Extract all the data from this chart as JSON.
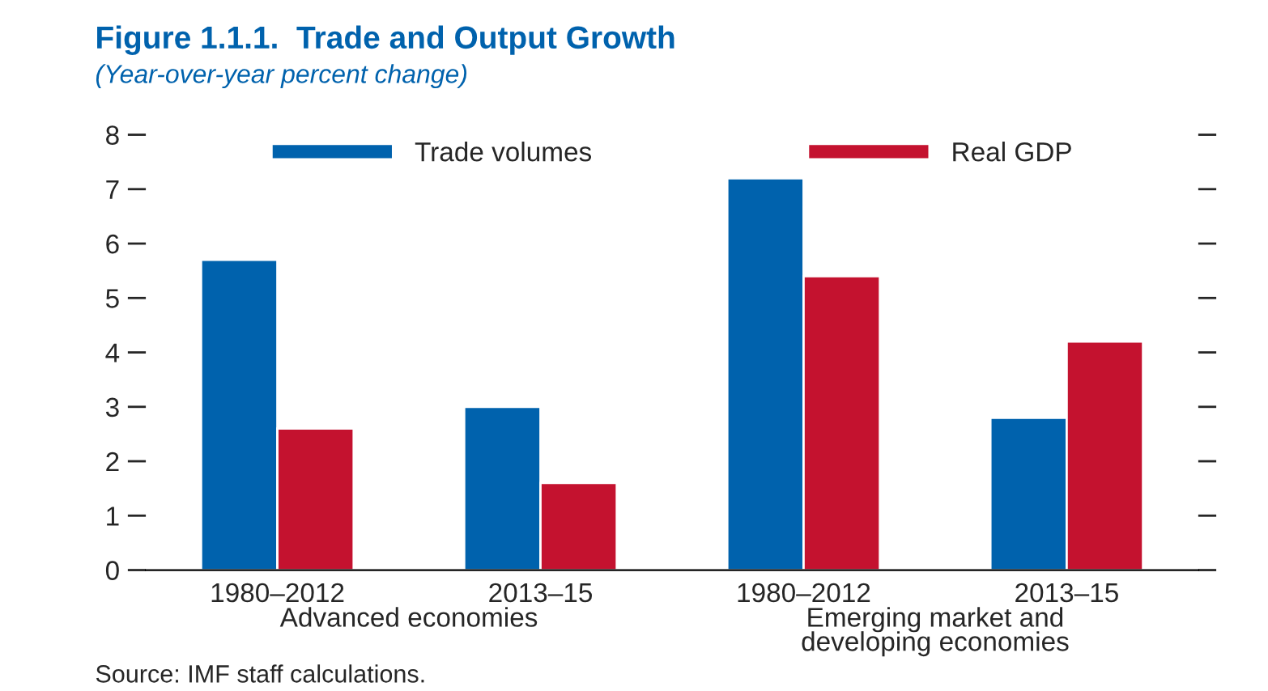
{
  "chart_data": {
    "type": "bar",
    "title": "Figure 1.1.1.  Trade and Output Growth",
    "subtitle": "(Year-over-year percent change)",
    "categories": [
      "1980–2012",
      "2013–15",
      "1980–2012",
      "2013–15"
    ],
    "series": [
      {
        "name": "Trade volumes",
        "color": "#0062ad",
        "values": [
          5.7,
          3.0,
          7.2,
          2.8
        ]
      },
      {
        "name": "Real GDP",
        "color": "#c4122f",
        "values": [
          2.6,
          1.6,
          5.4,
          4.2
        ]
      }
    ],
    "ylim": [
      0,
      8
    ],
    "yticks": [
      0,
      1,
      2,
      3,
      4,
      5,
      6,
      7,
      8
    ],
    "grid": false,
    "legend": "top",
    "annotations": [
      "Advanced economies",
      "Emerging market and\ndeveloping economies",
      "Source: IMF staff calculations."
    ]
  }
}
